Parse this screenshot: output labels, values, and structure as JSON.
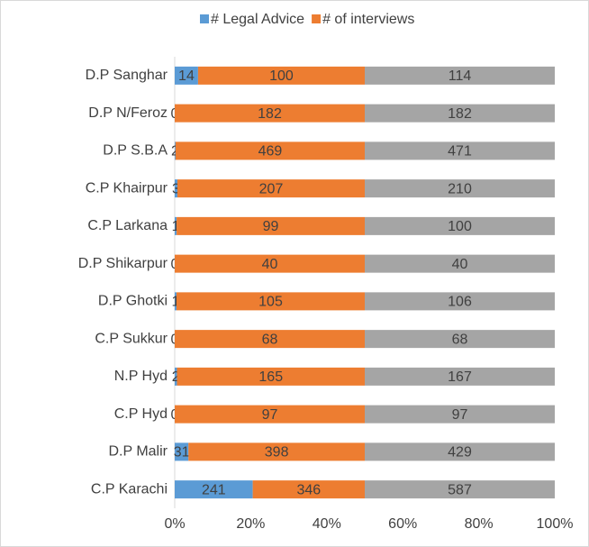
{
  "chart_data": {
    "type": "bar",
    "orientation": "horizontal",
    "stacking": "percent",
    "categories": [
      "D.P Sanghar",
      "D.P N/Feroz",
      "D.P S.B.A",
      "C.P Khairpur",
      "C.P Larkana",
      "D.P Shikarpur",
      "D.P Ghotki",
      "C.P Sukkur",
      "N.P Hyd",
      "C.P Hyd",
      "D.P Malir",
      "C.P Karachi"
    ],
    "series": [
      {
        "name": "# Legal Advice",
        "color": "#5b9bd5",
        "values": [
          14,
          0,
          2,
          3,
          1,
          0,
          1,
          0,
          2,
          0,
          31,
          241
        ]
      },
      {
        "name": "# of interviews",
        "color": "#ed7d31",
        "values": [
          100,
          182,
          469,
          207,
          99,
          40,
          105,
          68,
          165,
          97,
          398,
          346
        ]
      },
      {
        "color": "#a5a5a5",
        "values": [
          114,
          182,
          471,
          210,
          100,
          40,
          106,
          68,
          167,
          97,
          429,
          587
        ]
      }
    ],
    "xlim": [
      0,
      100
    ],
    "xticks": [
      {
        "value": 0,
        "label": "0%"
      },
      {
        "value": 20,
        "label": "20%"
      },
      {
        "value": 40,
        "label": "40%"
      },
      {
        "value": 60,
        "label": "60%"
      },
      {
        "value": 80,
        "label": "80%"
      },
      {
        "value": 100,
        "label": "100%"
      }
    ],
    "legend": "top",
    "grid": false
  }
}
